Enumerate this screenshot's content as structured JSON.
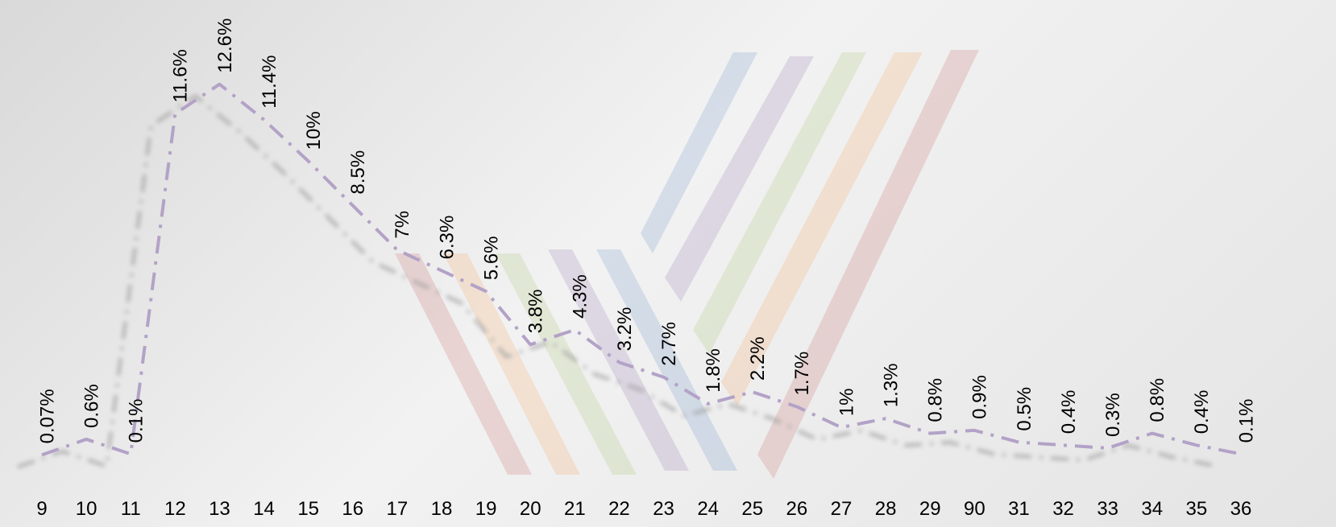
{
  "chart_data": {
    "type": "line",
    "categories": [
      "9",
      "10",
      "11",
      "12",
      "13",
      "14",
      "15",
      "16",
      "17",
      "18",
      "19",
      "20",
      "21",
      "22",
      "23",
      "24",
      "25",
      "26",
      "27",
      "28",
      "29",
      "90",
      "31",
      "32",
      "33",
      "34",
      "35",
      "36"
    ],
    "series": [
      {
        "color": "#b3a2c7",
        "values": [
          0.07,
          0.6,
          0.1,
          11.6,
          12.6,
          11.4,
          10,
          8.5,
          7,
          6.3,
          5.6,
          3.8,
          4.3,
          3.2,
          2.7,
          1.8,
          2.2,
          1.7,
          1,
          1.3,
          0.8,
          0.9,
          0.5,
          0.4,
          0.3,
          0.8,
          0.4,
          0.1
        ],
        "value_labels": [
          "0.07%",
          "0.6%",
          "0.1%",
          "11.6%",
          "12.6%",
          "11.4%",
          "10%",
          "8.5%",
          "7%",
          "6.3%",
          "5.6%",
          "3.8%",
          "4.3%",
          "3.2%",
          "2.7%",
          "1.8%",
          "2.2%",
          "1.7%",
          "1%",
          "1.3%",
          "0.8%",
          "0.9%",
          "0.5%",
          "0.4%",
          "0.3%",
          "0.8%",
          "0.4%",
          "0.1%"
        ]
      }
    ],
    "ylim": [
      0,
      13
    ]
  }
}
